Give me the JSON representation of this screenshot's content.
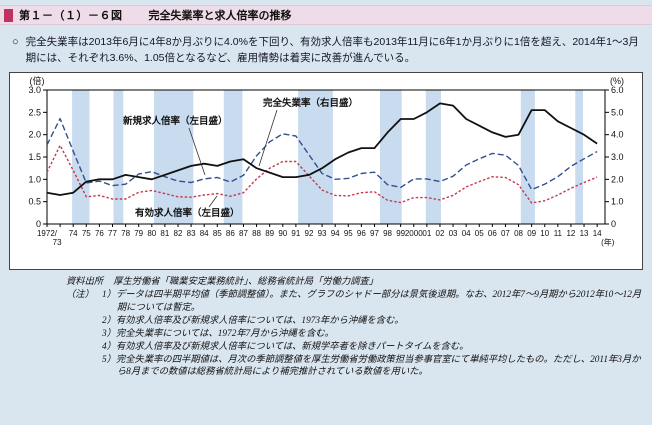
{
  "colors": {
    "page_bg": "#d9e5ef",
    "title_band_bg": "#eedde8",
    "accent_square": "#c0325f",
    "recession_band": "#c8dbef",
    "unemployment_line": "#111111",
    "new_ratio_line": "#33508c",
    "effective_ratio_line": "#c23b4e"
  },
  "header": {
    "figure_no": "第１－（１）－６図",
    "title": "完全失業率と求人倍率の推移"
  },
  "summary": {
    "bullet": "○",
    "text": "完全失業率は2013年6月に4年8か月ぶりに4.0%を下回り、有効求人倍率も2013年11月に6年1か月ぶりに1倍を超え、2014年1～3月期には、それぞれ3.6%、1.05倍となるなど、雇用情勢は着実に改善が進んでいる。"
  },
  "chart_data": {
    "type": "line",
    "title": "完全失業率と求人倍率の推移",
    "x_unit_label": "(年)",
    "left_axis": {
      "label": "(倍)",
      "min": 0,
      "max": 3.0,
      "step": 0.5,
      "ticks": [
        "3.0",
        "2.5",
        "2.0",
        "1.5",
        "1.0",
        "0.5",
        "0"
      ]
    },
    "right_axis": {
      "label": "(%)",
      "min": 0,
      "max": 6.0,
      "step": 1.0,
      "ticks": [
        "6.0",
        "5.0",
        "4.0",
        "3.0",
        "2.0",
        "1.0",
        "0"
      ]
    },
    "first_x_tick": [
      "1972/",
      "73"
    ],
    "x_tick_labels": [
      "74",
      "75",
      "76",
      "77",
      "78",
      "79",
      "80",
      "81",
      "82",
      "83",
      "84",
      "85",
      "86",
      "87",
      "88",
      "89",
      "90",
      "91",
      "92",
      "93",
      "94",
      "95",
      "96",
      "97",
      "98",
      "99",
      "2000",
      "01",
      "02",
      "03",
      "04",
      "05",
      "06",
      "07",
      "08",
      "09",
      "10",
      "11",
      "12",
      "13",
      "14"
    ],
    "years": [
      1972,
      1973,
      1974,
      1975,
      1976,
      1977,
      1978,
      1979,
      1980,
      1981,
      1982,
      1983,
      1984,
      1985,
      1986,
      1987,
      1988,
      1989,
      1990,
      1991,
      1992,
      1993,
      1994,
      1995,
      1996,
      1997,
      1998,
      1999,
      2000,
      2001,
      2002,
      2003,
      2004,
      2005,
      2006,
      2007,
      2008,
      2009,
      2010,
      2011,
      2012,
      2013,
      2014
    ],
    "series": [
      {
        "name": "完全失業率（右目盛）",
        "axis": "right",
        "color": "#111111",
        "style": "solid",
        "values": [
          1.4,
          1.3,
          1.4,
          1.9,
          2.0,
          2.0,
          2.2,
          2.1,
          2.0,
          2.2,
          2.4,
          2.6,
          2.7,
          2.6,
          2.8,
          2.9,
          2.5,
          2.3,
          2.1,
          2.1,
          2.2,
          2.5,
          2.9,
          3.2,
          3.4,
          3.4,
          4.1,
          4.7,
          4.7,
          5.0,
          5.4,
          5.3,
          4.7,
          4.4,
          4.1,
          3.9,
          4.0,
          5.1,
          5.1,
          4.6,
          4.3,
          4.0,
          3.6
        ]
      },
      {
        "name": "新規求人倍率（左目盛）",
        "axis": "left",
        "color": "#33508c",
        "style": "dashed",
        "values": [
          1.77,
          2.36,
          1.63,
          0.92,
          0.96,
          0.86,
          0.89,
          1.12,
          1.17,
          1.06,
          0.96,
          0.93,
          1.01,
          1.04,
          0.94,
          1.09,
          1.53,
          1.84,
          2.02,
          1.97,
          1.55,
          1.13,
          1.0,
          1.02,
          1.13,
          1.16,
          0.88,
          0.82,
          1.01,
          1.01,
          0.95,
          1.07,
          1.32,
          1.46,
          1.58,
          1.54,
          1.31,
          0.77,
          0.89,
          1.06,
          1.29,
          1.46,
          1.62
        ]
      },
      {
        "name": "有効求人倍率（左目盛）",
        "axis": "left",
        "color": "#c23b4e",
        "style": "dash-fine",
        "values": [
          1.16,
          1.76,
          1.2,
          0.61,
          0.64,
          0.56,
          0.56,
          0.71,
          0.75,
          0.68,
          0.61,
          0.6,
          0.65,
          0.68,
          0.62,
          0.7,
          1.01,
          1.25,
          1.4,
          1.4,
          1.08,
          0.76,
          0.64,
          0.63,
          0.7,
          0.72,
          0.53,
          0.48,
          0.59,
          0.59,
          0.54,
          0.64,
          0.83,
          0.95,
          1.06,
          1.04,
          0.88,
          0.47,
          0.52,
          0.65,
          0.8,
          0.93,
          1.05
        ]
      }
    ],
    "recession_bands": [
      [
        1973.92,
        1975.25
      ],
      [
        1977.08,
        1977.83
      ],
      [
        1980.17,
        1983.17
      ],
      [
        1985.5,
        1986.92
      ],
      [
        1991.17,
        1993.83
      ],
      [
        1997.42,
        1999.08
      ],
      [
        2000.92,
        2002.08
      ],
      [
        2008.17,
        2009.25
      ],
      [
        2012.33,
        2012.92
      ]
    ]
  },
  "source": {
    "label": "資料出所",
    "text": "厚生労働省「職業安定業務統計」、総務省統計局「労働力調査」"
  },
  "notes": {
    "label": "（注）",
    "items": [
      "1）データは四半期平均値（季節調整値）。また、グラフのシャドー部分は景気後退期。なお、2012年7～9月期から2012年10～12月期については暫定。",
      "2）有効求人倍率及び新規求人倍率については、1973年から沖縄を含む。",
      "3）完全失業率については、1972年7月から沖縄を含む。",
      "4）有効求人倍率及び新規求人倍率については、新規学卒者を除きパートタイムを含む。",
      "5）完全失業率の四半期値は、月次の季節調整値を厚生労働省労働政策担当参事官室にて単純平均したもの。ただし、2011年3月から8月までの数値は総務省統計局により補完推計されている数値を用いた。"
    ]
  }
}
